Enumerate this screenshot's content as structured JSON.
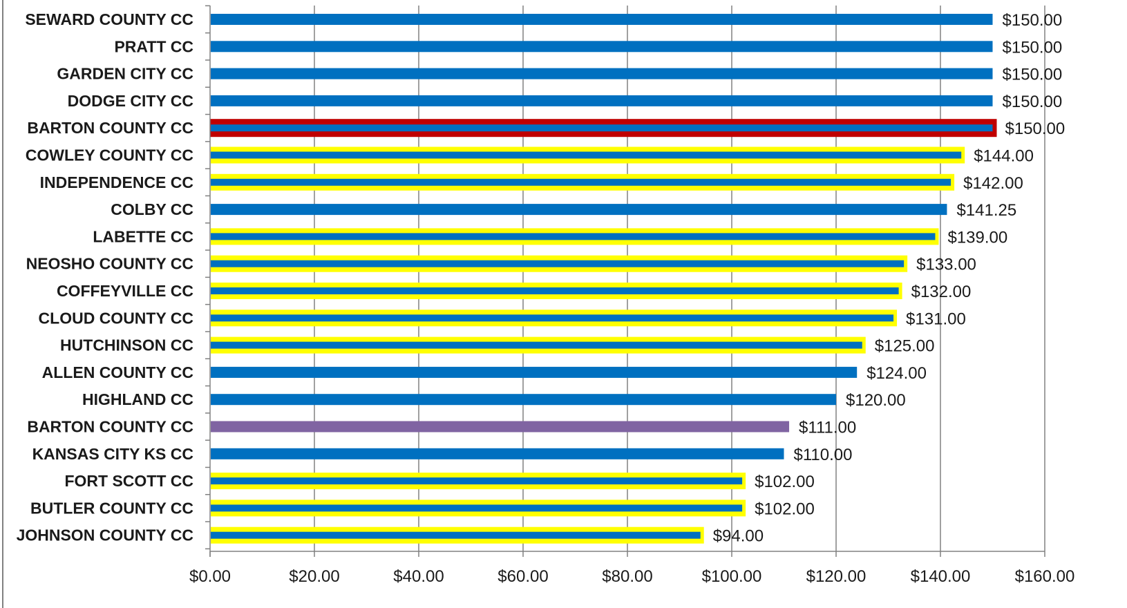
{
  "chart_data": {
    "type": "bar",
    "orientation": "horizontal",
    "title": "",
    "xlabel": "",
    "ylabel": "",
    "xlim": [
      0,
      160
    ],
    "x_ticks": [
      0,
      20,
      40,
      60,
      80,
      100,
      120,
      140,
      160
    ],
    "x_tick_labels": [
      "$0.00",
      "$20.00",
      "$40.00",
      "$60.00",
      "$80.00",
      "$100.00",
      "$120.00",
      "$140.00",
      "$160.00"
    ],
    "grid": "vertical gridlines on",
    "legend": "none",
    "categories": [
      "SEWARD COUNTY CC",
      "PRATT CC",
      "GARDEN CITY CC",
      "DODGE CITY CC",
      "BARTON COUNTY CC",
      "COWLEY COUNTY CC",
      "INDEPENDENCE CC",
      "COLBY CC",
      "LABETTE CC",
      "NEOSHO COUNTY CC",
      "COFFEYVILLE CC",
      "CLOUD COUNTY CC",
      "HUTCHINSON CC",
      "ALLEN COUNTY CC",
      "HIGHLAND CC",
      "BARTON COUNTY CC",
      "KANSAS CITY KS CC",
      "FORT SCOTT CC",
      "BUTLER COUNTY CC",
      "JOHNSON COUNTY CC"
    ],
    "values": [
      150,
      150,
      150,
      150,
      150,
      144,
      142,
      141.25,
      139,
      133,
      132,
      131,
      125,
      124,
      120,
      111,
      110,
      102,
      102,
      94
    ],
    "value_labels": [
      "$150.00",
      "$150.00",
      "$150.00",
      "$150.00",
      "$150.00",
      "$144.00",
      "$142.00",
      "$141.25",
      "$139.00",
      "$133.00",
      "$132.00",
      "$131.00",
      "$125.00",
      "$124.00",
      "$120.00",
      "$111.00",
      "$110.00",
      "$102.00",
      "$102.00",
      "$94.00"
    ],
    "bar_fill": [
      "blue",
      "blue",
      "blue",
      "blue",
      "blue",
      "blue",
      "blue",
      "blue",
      "blue",
      "blue",
      "blue",
      "blue",
      "blue",
      "blue",
      "blue",
      "purple",
      "blue",
      "blue",
      "blue",
      "blue"
    ],
    "bar_outline": [
      "none",
      "none",
      "none",
      "none",
      "red",
      "yellow",
      "yellow",
      "none",
      "yellow",
      "yellow",
      "yellow",
      "yellow",
      "yellow",
      "none",
      "none",
      "none",
      "none",
      "yellow",
      "yellow",
      "yellow"
    ],
    "colors": {
      "blue": "#0070C0",
      "purple": "#8064A2",
      "yellow": "#FFFF00",
      "red": "#C00000",
      "grid": "#808080",
      "axis": "#808080"
    }
  }
}
